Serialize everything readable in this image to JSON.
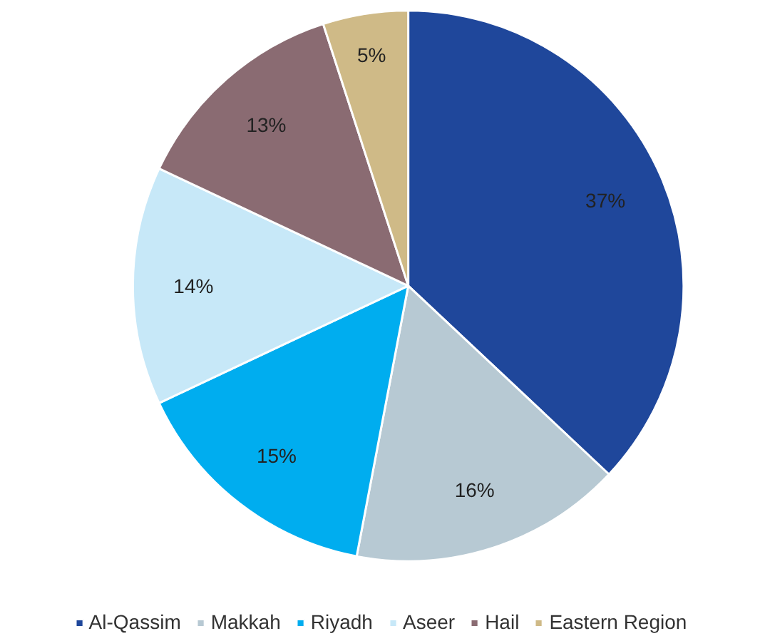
{
  "chart_data": {
    "type": "pie",
    "categories": [
      "Al-Qassim",
      "Makkah",
      "Riyadh",
      "Aseer",
      "Hail",
      "Eastern Region"
    ],
    "values": [
      37,
      16,
      15,
      14,
      13,
      5
    ],
    "colors": [
      "#1f479b",
      "#b7c9d3",
      "#00adef",
      "#c7e8f8",
      "#8a6b72",
      "#cfba87"
    ],
    "value_labels": [
      "37%",
      "16%",
      "15%",
      "14%",
      "13%",
      "5%"
    ],
    "legend": "bottom"
  }
}
